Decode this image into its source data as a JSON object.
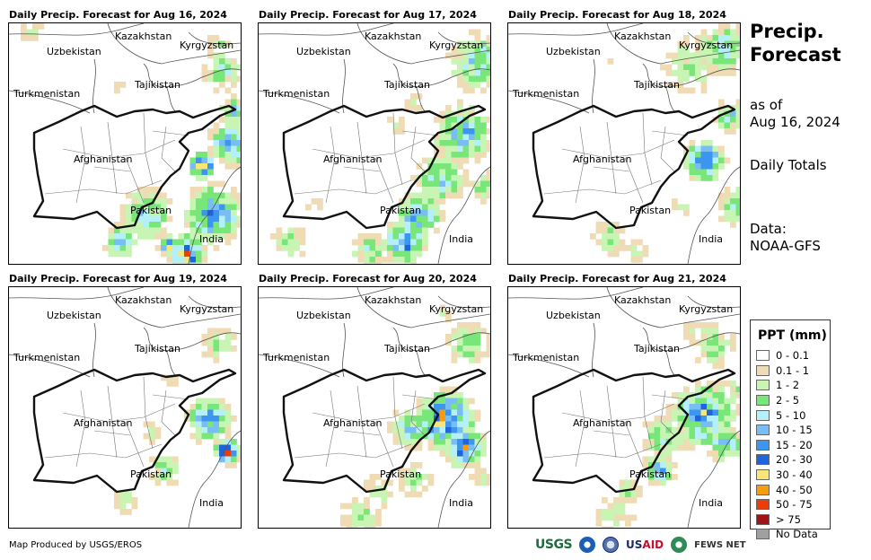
{
  "panels": [
    {
      "title": "Daily Precip. Forecast for Aug 16, 2024"
    },
    {
      "title": "Daily Precip. Forecast for Aug 17, 2024"
    },
    {
      "title": "Daily Precip. Forecast for Aug 18, 2024"
    },
    {
      "title": "Daily Precip. Forecast for Aug 19, 2024"
    },
    {
      "title": "Daily Precip. Forecast for Aug 20, 2024"
    },
    {
      "title": "Daily Precip. Forecast for Aug 21, 2024"
    }
  ],
  "map_labels": {
    "kazakhstan": "Kazakhstan",
    "kyrgyzstan": "Kyrgyzstan",
    "uzbekistan": "Uzbekistan",
    "tajikistan": "Tajikistan",
    "turkmenistan": "Turkmenistan",
    "afghanistan": "Afghanistan",
    "pakistan": "Pakistan",
    "india": "India"
  },
  "sidebar": {
    "title_line1": "Precip.",
    "title_line2": "Forecast",
    "asof_line1": "as of",
    "asof_line2": "Aug 16, 2024",
    "totals": "Daily Totals",
    "data_line1": "Data:",
    "data_line2": "NOAA-GFS"
  },
  "legend": {
    "title": "PPT (mm)",
    "items": [
      {
        "label": "0 - 0.1",
        "color": "#ffffff"
      },
      {
        "label": "0.1 - 1",
        "color": "#f0dcb4"
      },
      {
        "label": "1 - 2",
        "color": "#c8f5b4"
      },
      {
        "label": "2 - 5",
        "color": "#78e678"
      },
      {
        "label": "5 - 10",
        "color": "#b4f0fa"
      },
      {
        "label": "10 - 15",
        "color": "#78bef5"
      },
      {
        "label": "15 - 20",
        "color": "#3c96f0"
      },
      {
        "label": "20 - 30",
        "color": "#1e64dc"
      },
      {
        "label": "30 - 40",
        "color": "#fae678"
      },
      {
        "label": "40 - 50",
        "color": "#fa9b0a"
      },
      {
        "label": "50 - 75",
        "color": "#eb3c0a"
      },
      {
        "label": "> 75",
        "color": "#a01414"
      },
      {
        "label": "No Data",
        "color": "#a0a0a0"
      }
    ]
  },
  "credit": "Map Produced by USGS/EROS",
  "logos": {
    "usgs": "USGS",
    "usaid_a": "US",
    "usaid_b": "AID",
    "fews": "FEWS NET"
  }
}
